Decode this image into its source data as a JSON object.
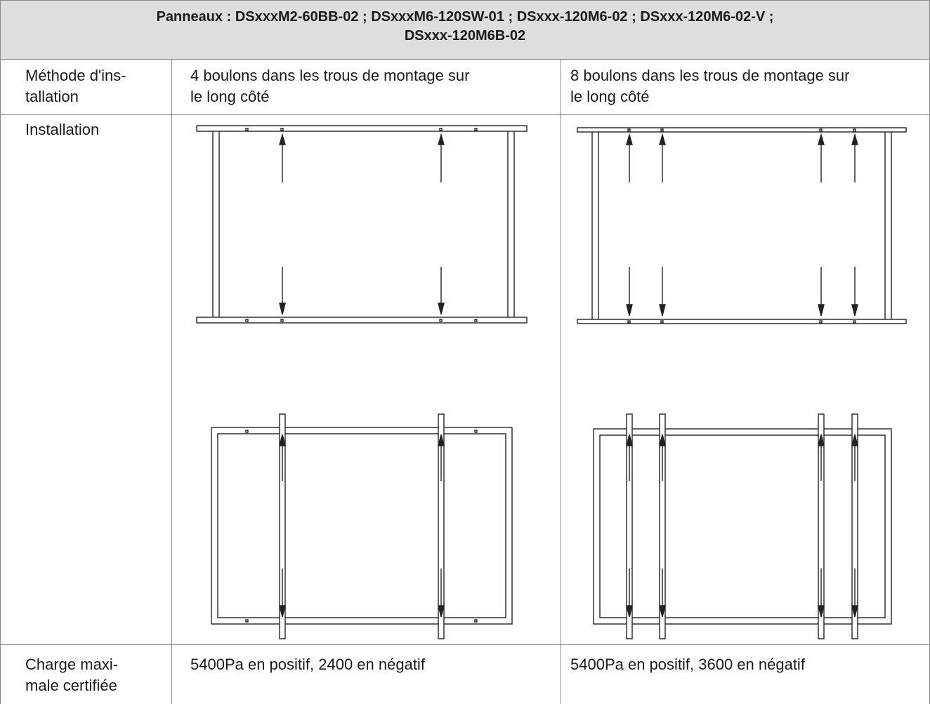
{
  "header": {
    "line1": "Panneaux : DSxxxM2-60BB-02 ; DSxxxM6-120SW-01 ; DSxxx-120M6-02 ; DSxxx-120M6-02-V ;",
    "line2": "DSxxx-120M6B-02"
  },
  "rows": {
    "methode": {
      "label_line1": "Méthode d'ins-",
      "label_line2": "tallation",
      "col1_line1": "4 boulons dans les trous de montage sur",
      "col1_line2": "le long côté",
      "col2_line1": "8 boulons dans les trous de montage sur",
      "col2_line2": "le long côté"
    },
    "installation": {
      "label": "Installation"
    },
    "charge": {
      "label_line1": "Charge maxi-",
      "label_line2": "male certifiée",
      "col1": "5400Pa en positif, 2400 en négatif",
      "col2": "5400Pa en positif, 3600 en négatif"
    }
  },
  "colors": {
    "header_bg": "#dedede",
    "grid": "#8a8a8a",
    "drawing_stroke": "#222222"
  }
}
